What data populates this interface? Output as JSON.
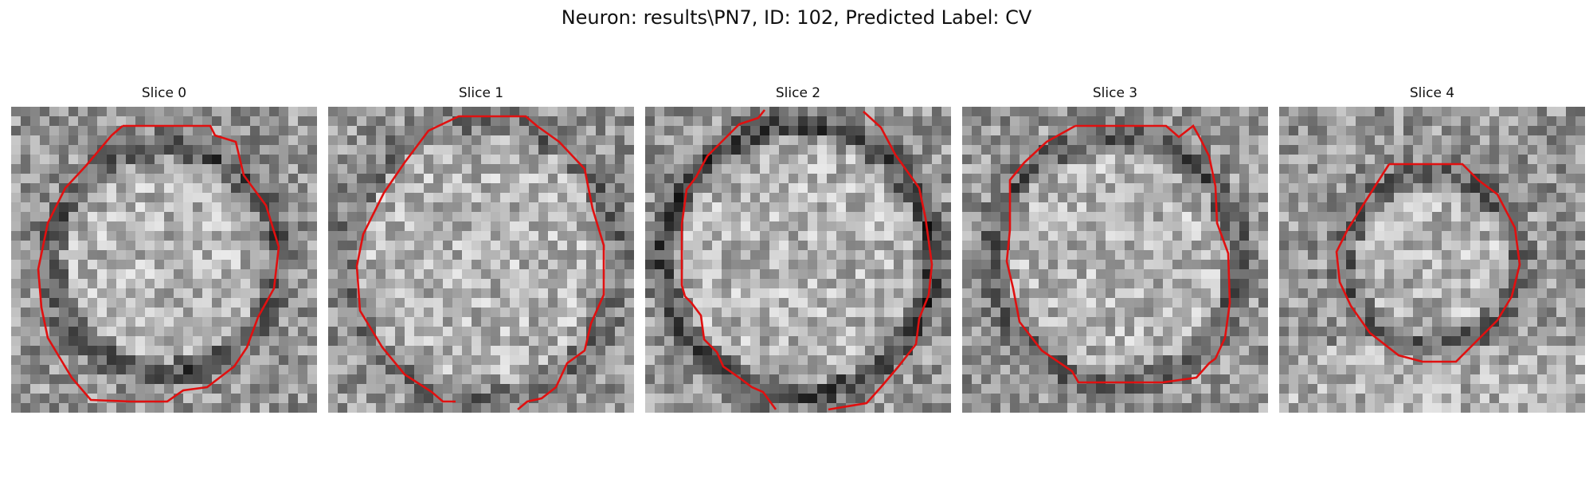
{
  "figure": {
    "suptitle": "Neuron: results\\PN7, ID: 102, Predicted Label: CV"
  },
  "contour_color": "#e01010",
  "panels": [
    {
      "title": "Slice 0"
    },
    {
      "title": "Slice 1"
    },
    {
      "title": "Slice 2"
    },
    {
      "title": "Slice 3"
    },
    {
      "title": "Slice 4"
    }
  ]
}
